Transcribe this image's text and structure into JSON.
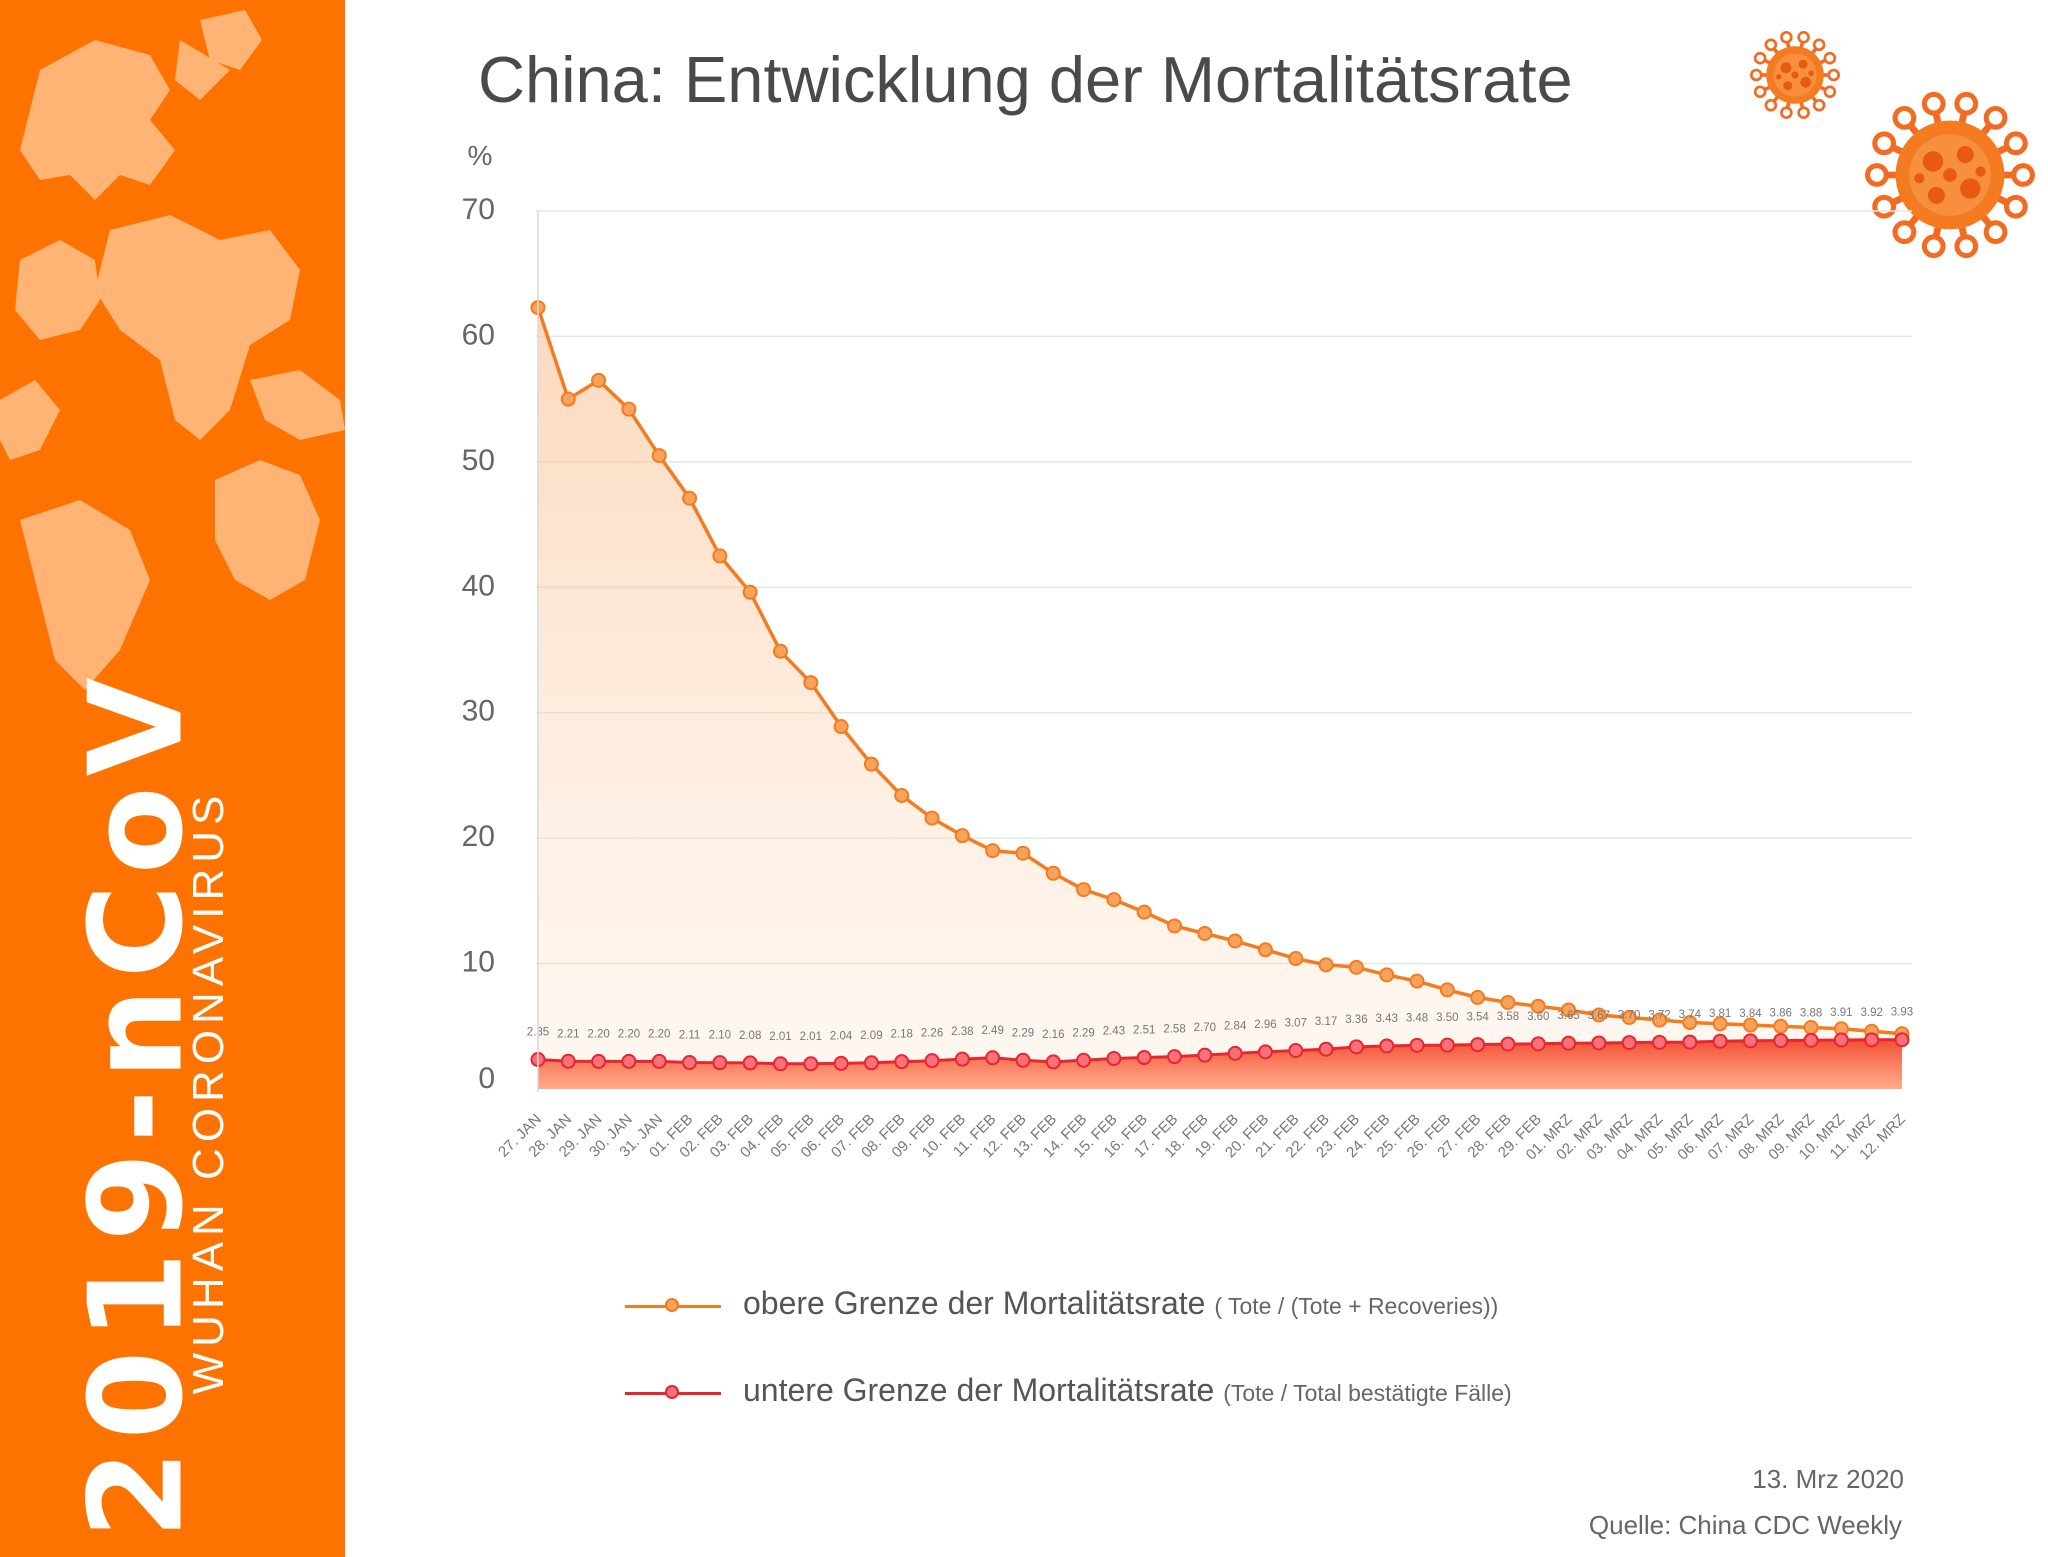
{
  "sidebar": {
    "brand": "2019-nCoV",
    "subtitle": "WUHAN CORONAVIRUS",
    "background": "#fe7200"
  },
  "footer": {
    "date": "13. Mrz 2020",
    "source": "Quelle: China CDC Weekly"
  },
  "colors": {
    "upper_line": "#f47b20",
    "upper_marker": "#f7a35c",
    "lower_line": "#e8262e",
    "lower_marker": "#f7707a",
    "grid": "#e6e6e6",
    "axis_text": "#666666"
  },
  "legend": {
    "upper_label": "obere Grenze der Mortalitätsrate",
    "upper_sub": "( Tote / (Tote + Recoveries))",
    "lower_label": "untere Grenze der Mortalitätsrate",
    "lower_sub": "(Tote / Total bestätigte Fälle)"
  },
  "chart_data": {
    "type": "line",
    "title": "China: Entwicklung der Mortalitätsrate",
    "ylabel": "%",
    "xlabel": "",
    "ylim": [
      0,
      70
    ],
    "yticks": [
      0,
      10,
      20,
      30,
      40,
      50,
      60,
      70
    ],
    "grid": true,
    "legend_position": "bottom",
    "categories": [
      "27. JAN",
      "28. JAN",
      "29. JAN",
      "30. JAN",
      "31. JAN",
      "01. FEB",
      "02. FEB",
      "03. FEB",
      "04. FEB",
      "05. FEB",
      "06. FEB",
      "07. FEB",
      "08. FEB",
      "09. FEB",
      "10. FEB",
      "11. FEB",
      "12. FEB",
      "13. FEB",
      "14. FEB",
      "15. FEB",
      "16. FEB",
      "17. FEB",
      "18. FEB",
      "19. FEB",
      "20. FEB",
      "21. FEB",
      "22. FEB",
      "23. FEB",
      "24. FEB",
      "25. FEB",
      "26. FEB",
      "27. FEB",
      "28. FEB",
      "29. FEB",
      "01. MRZ",
      "02. MRZ",
      "03. MRZ",
      "04. MRZ",
      "05. MRZ",
      "06. MRZ",
      "07. MRZ",
      "08. MRZ",
      "09. MRZ",
      "10. MRZ",
      "11. MRZ",
      "12. MRZ"
    ],
    "series": [
      {
        "name": "obere Grenze der Mortalitätsrate",
        "values": [
          62.3,
          55.0,
          56.5,
          54.2,
          50.5,
          47.1,
          42.5,
          39.6,
          34.9,
          32.4,
          28.9,
          25.9,
          23.4,
          21.6,
          20.2,
          19.0,
          18.8,
          17.2,
          15.9,
          15.1,
          14.1,
          13.0,
          12.4,
          11.8,
          11.1,
          10.4,
          9.9,
          9.7,
          9.1,
          8.6,
          7.9,
          7.3,
          6.9,
          6.6,
          6.3,
          5.9,
          5.7,
          5.5,
          5.3,
          5.2,
          5.1,
          5.0,
          4.9,
          4.8,
          4.6,
          4.4
        ]
      },
      {
        "name": "untere Grenze der Mortalitätsrate",
        "values": [
          2.35,
          2.21,
          2.2,
          2.2,
          2.2,
          2.11,
          2.1,
          2.08,
          2.01,
          2.01,
          2.04,
          2.09,
          2.18,
          2.26,
          2.38,
          2.49,
          2.29,
          2.16,
          2.29,
          2.43,
          2.51,
          2.58,
          2.7,
          2.84,
          2.96,
          3.07,
          3.17,
          3.36,
          3.43,
          3.48,
          3.5,
          3.54,
          3.58,
          3.6,
          3.65,
          3.67,
          3.7,
          3.72,
          3.74,
          3.81,
          3.84,
          3.86,
          3.88,
          3.91,
          3.92,
          3.93
        ],
        "data_labels": [
          "2.35",
          "2.21",
          "2.20",
          "2.20",
          "2.20",
          "2.11",
          "2.10",
          "2.08",
          "2.01",
          "2.01",
          "2.04",
          "2.09",
          "2.18",
          "2.26",
          "2.38",
          "2.49",
          "2.29",
          "2.16",
          "2.29",
          "2.43",
          "2.51",
          "2.58",
          "2.70",
          "2.84",
          "2.96",
          "3.07",
          "3.17",
          "3.36",
          "3.43",
          "3.48",
          "3.50",
          "3.54",
          "3.58",
          "3.60",
          "3.65",
          "3.67",
          "3.70",
          "3.72",
          "3.74",
          "3.81",
          "3.84",
          "3.86",
          "3.88",
          "3.91",
          "3.92",
          "3.93"
        ]
      }
    ]
  }
}
